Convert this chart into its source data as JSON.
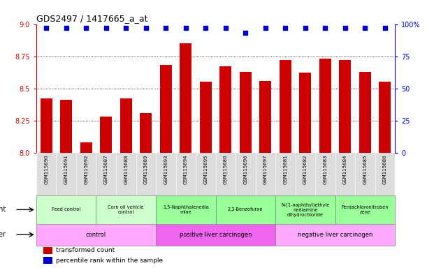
{
  "title": "GDS2497 / 1417665_a_at",
  "samples": [
    "GSM115690",
    "GSM115691",
    "GSM115692",
    "GSM115687",
    "GSM115688",
    "GSM115689",
    "GSM115693",
    "GSM115694",
    "GSM115695",
    "GSM115680",
    "GSM115696",
    "GSM115697",
    "GSM115681",
    "GSM115682",
    "GSM115683",
    "GSM115684",
    "GSM115685",
    "GSM115686"
  ],
  "bar_values": [
    8.42,
    8.41,
    8.08,
    8.28,
    8.42,
    8.31,
    8.68,
    8.85,
    8.55,
    8.67,
    8.63,
    8.56,
    8.72,
    8.62,
    8.73,
    8.72,
    8.63,
    8.55
  ],
  "percentile_values": [
    97,
    97,
    97,
    97,
    97,
    97,
    97,
    97,
    97,
    97,
    93,
    97,
    97,
    97,
    97,
    97,
    97,
    97
  ],
  "bar_color": "#cc0000",
  "dot_color": "#0000cc",
  "ylim": [
    8.0,
    9.0
  ],
  "yticks": [
    8.0,
    8.25,
    8.5,
    8.75,
    9.0
  ],
  "right_ylim": [
    0,
    100
  ],
  "right_yticks": [
    0,
    25,
    50,
    75,
    100
  ],
  "agent_groups": [
    {
      "label": "Feed control",
      "start": 0,
      "end": 3,
      "color": "#ccffcc"
    },
    {
      "label": "Corn oil vehicle\ncontrol",
      "start": 3,
      "end": 6,
      "color": "#ccffcc"
    },
    {
      "label": "1,5-Naphthalenedia\nmine",
      "start": 6,
      "end": 9,
      "color": "#99ff99"
    },
    {
      "label": "2,3-Benzofuran",
      "start": 9,
      "end": 12,
      "color": "#99ff99"
    },
    {
      "label": "N-(1-naphthyl)ethyle\nnediamine\ndihydrochloride",
      "start": 12,
      "end": 15,
      "color": "#99ff99"
    },
    {
      "label": "Pentachloronitroben\nzene",
      "start": 15,
      "end": 18,
      "color": "#99ff99"
    }
  ],
  "other_groups": [
    {
      "label": "control",
      "start": 0,
      "end": 6,
      "color": "#ffaaff"
    },
    {
      "label": "positive liver carcinogen",
      "start": 6,
      "end": 12,
      "color": "#ee66ee"
    },
    {
      "label": "negative liver carcinogen",
      "start": 12,
      "end": 18,
      "color": "#ffaaff"
    }
  ],
  "legend_items": [
    {
      "color": "#cc0000",
      "label": "transformed count"
    },
    {
      "color": "#0000cc",
      "label": "percentile rank within the sample"
    }
  ]
}
